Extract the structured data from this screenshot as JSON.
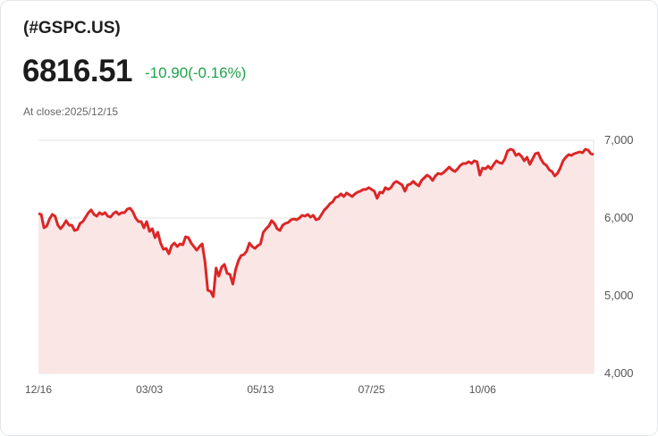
{
  "header": {
    "symbol": "(#GSPC.US)",
    "price": "6816.51",
    "change": "-10.90(-0.16%)",
    "close_label": "At close:2025/12/15"
  },
  "colors": {
    "line": "#dc2626",
    "area": "#fbe6e6",
    "change": "#1fa34a",
    "grid": "#e3e3e3"
  },
  "chart_data": {
    "type": "area",
    "title": "(#GSPC.US)",
    "xlabel": "",
    "ylabel": "",
    "ylim": [
      4000,
      7000
    ],
    "y_ticks": [
      "7,000",
      "6,000",
      "5,000",
      "4,000"
    ],
    "y_tick_values": [
      7000,
      6000,
      5000,
      4000
    ],
    "x_ticks": [
      "12/16",
      "03/03",
      "05/13",
      "07/25",
      "10/06"
    ],
    "grid": true,
    "values": [
      6057,
      6046,
      5874,
      5897,
      5989,
      6046,
      6023,
      5908,
      5862,
      5908,
      5966,
      5908,
      5908,
      5839,
      5851,
      5931,
      5954,
      6012,
      6069,
      6103,
      6046,
      6023,
      6069,
      6046,
      6069,
      6023,
      6012,
      6057,
      6080,
      6046,
      6069,
      6069,
      6115,
      6126,
      6080,
      6000,
      5954,
      5954,
      5874,
      5954,
      5828,
      5862,
      5747,
      5816,
      5678,
      5598,
      5609,
      5540,
      5644,
      5678,
      5632,
      5667,
      5655,
      5759,
      5747,
      5678,
      5632,
      5586,
      5632,
      5667,
      5437,
      5069,
      5058,
      4989,
      5356,
      5253,
      5368,
      5402,
      5287,
      5276,
      5149,
      5333,
      5448,
      5517,
      5529,
      5575,
      5678,
      5632,
      5609,
      5644,
      5667,
      5816,
      5862,
      5897,
      5966,
      5931,
      5862,
      5839,
      5908,
      5931,
      5943,
      5977,
      5989,
      5977,
      6000,
      6034,
      6023,
      6046,
      6012,
      6034,
      5977,
      5989,
      6046,
      6103,
      6138,
      6184,
      6207,
      6264,
      6276,
      6310,
      6276,
      6322,
      6299,
      6276,
      6310,
      6333,
      6345,
      6368,
      6368,
      6391,
      6368,
      6345,
      6253,
      6333,
      6322,
      6391,
      6368,
      6391,
      6448,
      6471,
      6448,
      6425,
      6345,
      6425,
      6437,
      6471,
      6437,
      6414,
      6483,
      6517,
      6552,
      6529,
      6483,
      6540,
      6575,
      6563,
      6586,
      6621,
      6655,
      6621,
      6598,
      6632,
      6678,
      6701,
      6701,
      6724,
      6701,
      6736,
      6724,
      6552,
      6644,
      6632,
      6667,
      6632,
      6690,
      6736,
      6713,
      6701,
      6759,
      6862,
      6885,
      6874,
      6805,
      6828,
      6793,
      6736,
      6782,
      6690,
      6759,
      6828,
      6839,
      6759,
      6701,
      6678,
      6621,
      6598,
      6540,
      6575,
      6644,
      6736,
      6782,
      6816,
      6805,
      6828,
      6839,
      6851,
      6839,
      6885,
      6874,
      6828,
      6816.51
    ]
  }
}
